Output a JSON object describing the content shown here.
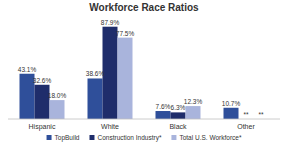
{
  "chart_data": {
    "type": "bar",
    "title": "Workforce Race Ratios",
    "categories": [
      "Hispanic",
      "White",
      "Black",
      "Other"
    ],
    "series": [
      {
        "name": "TopBuild",
        "color": "#2f4f9a",
        "values": [
          43.1,
          38.6,
          7.6,
          10.7
        ],
        "value_labels": [
          "43.1%",
          "38.6%",
          "7.6%",
          "10.7%"
        ]
      },
      {
        "name": "Construction Industry*",
        "color": "#1f2d6b",
        "values": [
          32.6,
          87.9,
          6.3,
          null
        ],
        "value_labels": [
          "32.6%",
          "87.9%",
          "6.3%",
          "**"
        ]
      },
      {
        "name": "Total U.S. Workforce*",
        "color": "#a9b4dc",
        "values": [
          18.0,
          77.5,
          12.3,
          null
        ],
        "value_labels": [
          "18.0%",
          "77.5%",
          "12.3%",
          "**"
        ]
      }
    ],
    "ylim": [
      0,
      100
    ],
    "tick_labels": false,
    "data_labels": true,
    "legend": "bottom",
    "grid": false
  }
}
